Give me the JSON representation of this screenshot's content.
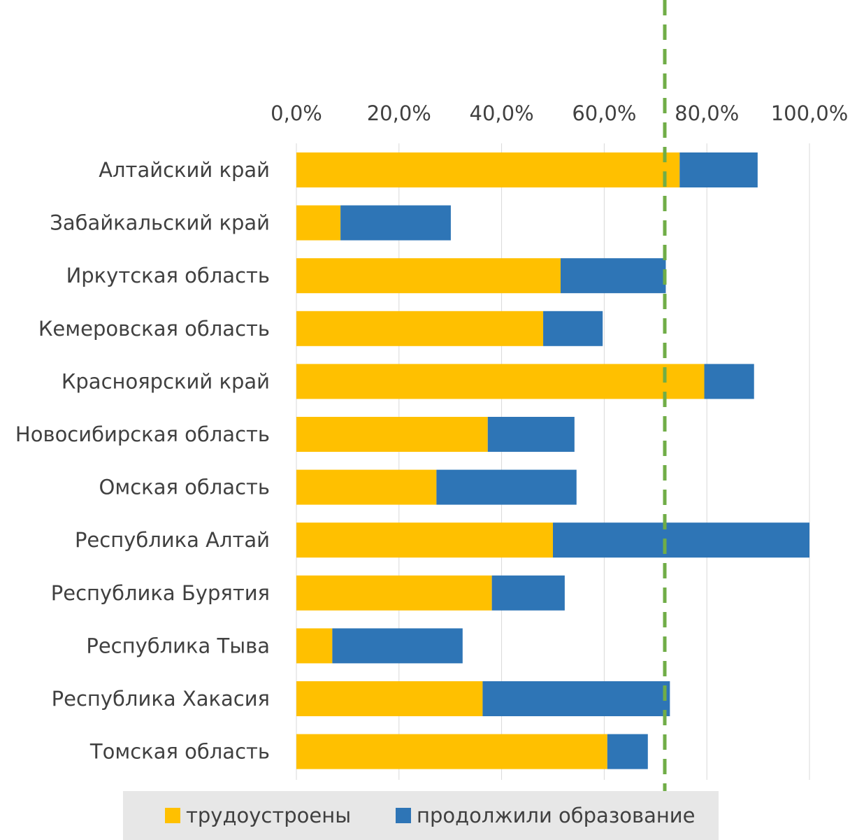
{
  "chart_data": {
    "type": "bar",
    "orientation": "horizontal",
    "stacked": true,
    "title": "",
    "xlabel": "",
    "ylabel": "",
    "xlim": [
      0,
      100
    ],
    "x_ticks": [
      "0,0%",
      "20,0%",
      "40,0%",
      "60,0%",
      "80,0%",
      "100,0%"
    ],
    "x_axis_position": "top",
    "grid": true,
    "categories": [
      "Алтайский край",
      "Забайкальский край",
      "Иркутская область",
      "Кемеровская область",
      "Красноярский край",
      "Новосибирская область",
      "Омская область",
      "Республика Алтай",
      "Республика Бурятия",
      "Республика Тыва",
      "Республика Хакасия",
      "Томская область"
    ],
    "series": [
      {
        "name": "трудоустроены",
        "color": "#FFC000",
        "values": [
          74.7,
          8.6,
          51.5,
          48.1,
          79.5,
          37.3,
          27.3,
          50.0,
          38.1,
          7.0,
          36.3,
          60.6
        ]
      },
      {
        "name": "продолжили образование",
        "color": "#2E75B6",
        "values": [
          15.2,
          21.5,
          20.5,
          11.6,
          9.7,
          16.9,
          27.3,
          50.0,
          14.2,
          25.4,
          36.5,
          7.9
        ]
      }
    ],
    "reference_line": {
      "value": 71.8,
      "style": "dashed",
      "color": "#70AD47"
    },
    "legend_position": "bottom"
  }
}
